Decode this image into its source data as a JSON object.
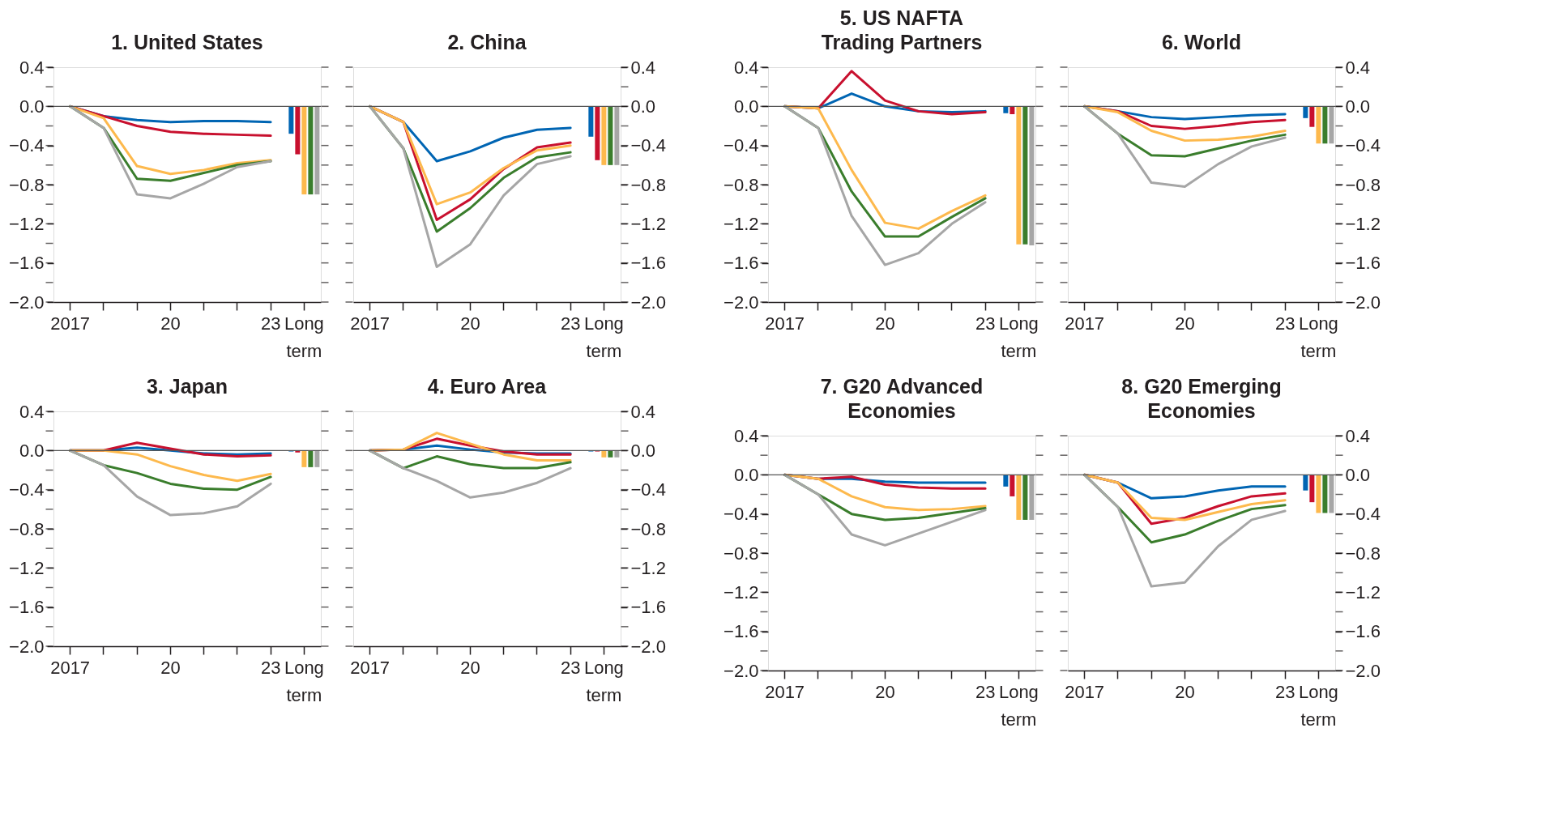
{
  "chart_data": [
    {
      "type": "line",
      "title": "1. United States",
      "categories": [
        "2017",
        null,
        null,
        "20",
        null,
        null,
        "23",
        "Long term"
      ],
      "ylim": [
        -2.0,
        0.4
      ],
      "yticks": [
        {
          "value": 0.4,
          "label": "0.4"
        },
        {
          "value": 0.2,
          "label": null
        },
        {
          "value": 0,
          "label": "0.0"
        },
        {
          "value": -0.2,
          "label": null
        },
        {
          "value": -0.4,
          "label": "−0.4"
        },
        {
          "value": -0.6,
          "label": null
        },
        {
          "value": -0.8,
          "label": "−0.8"
        },
        {
          "value": -1.0,
          "label": null
        },
        {
          "value": -1.2,
          "label": "−1.2"
        },
        {
          "value": -1.4,
          "label": null
        },
        {
          "value": -1.6,
          "label": "−1.6"
        },
        {
          "value": -1.8,
          "label": null
        },
        {
          "value": -2.0,
          "label": "−2.0"
        }
      ],
      "ref_lines": [
        {
          "axis": "y",
          "value": 0
        }
      ],
      "series": [
        {
          "color": "#0065b3",
          "values": [
            0,
            -0.1,
            -0.14,
            -0.16,
            -0.15,
            -0.15,
            -0.16,
            null
          ]
        },
        {
          "color": "#c8102e",
          "values": [
            0,
            -0.1,
            -0.2,
            -0.26,
            -0.28,
            -0.29,
            -0.3,
            null
          ]
        },
        {
          "color": "#fdb94d",
          "values": [
            0,
            -0.12,
            -0.61,
            -0.69,
            -0.65,
            -0.58,
            -0.55,
            null
          ]
        },
        {
          "color": "#3a7d2c",
          "values": [
            0,
            -0.22,
            -0.74,
            -0.76,
            -0.68,
            -0.6,
            -0.56,
            null
          ]
        },
        {
          "color": "#a6a6a6",
          "values": [
            0,
            -0.22,
            -0.9,
            -0.94,
            -0.79,
            -0.62,
            -0.56,
            null
          ]
        },
        {
          "type": "bar",
          "color": "#0065b3",
          "values": [
            null,
            null,
            null,
            null,
            null,
            null,
            null,
            -0.28
          ]
        },
        {
          "type": "bar",
          "color": "#c8102e",
          "values": [
            null,
            null,
            null,
            null,
            null,
            null,
            null,
            -0.49
          ]
        },
        {
          "type": "bar",
          "color": "#fdb94d",
          "values": [
            null,
            null,
            null,
            null,
            null,
            null,
            null,
            -0.9
          ]
        },
        {
          "type": "bar",
          "color": "#3a7d2c",
          "values": [
            null,
            null,
            null,
            null,
            null,
            null,
            null,
            -0.9
          ]
        },
        {
          "type": "bar",
          "color": "#a6a6a6",
          "values": [
            null,
            null,
            null,
            null,
            null,
            null,
            null,
            -0.9
          ]
        }
      ]
    },
    {
      "type": "line",
      "title": "2. China",
      "categories": [
        "2017",
        null,
        null,
        "20",
        null,
        null,
        "23",
        "Long term"
      ],
      "ylim": [
        -2.0,
        0.4
      ],
      "yticks": [
        {
          "value": 0.4,
          "label": "0.4"
        },
        {
          "value": 0.2,
          "label": null
        },
        {
          "value": 0,
          "label": "0.0"
        },
        {
          "value": -0.2,
          "label": null
        },
        {
          "value": -0.4,
          "label": "−0.4"
        },
        {
          "value": -0.6,
          "label": null
        },
        {
          "value": -0.8,
          "label": "−0.8"
        },
        {
          "value": -1.0,
          "label": null
        },
        {
          "value": -1.2,
          "label": "−1.2"
        },
        {
          "value": -1.4,
          "label": null
        },
        {
          "value": -1.6,
          "label": "−1.6"
        },
        {
          "value": -1.8,
          "label": null
        },
        {
          "value": -2.0,
          "label": "−2.0"
        }
      ],
      "ref_lines": [
        {
          "axis": "y",
          "value": 0
        }
      ],
      "series": [
        {
          "color": "#0065b3",
          "values": [
            0,
            -0.16,
            -0.56,
            -0.46,
            -0.32,
            -0.24,
            -0.22,
            null
          ]
        },
        {
          "color": "#c8102e",
          "values": [
            0,
            -0.16,
            -1.16,
            -0.95,
            -0.64,
            -0.42,
            -0.37,
            null
          ]
        },
        {
          "color": "#fdb94d",
          "values": [
            0,
            -0.16,
            -1.0,
            -0.88,
            -0.63,
            -0.45,
            -0.4,
            null
          ]
        },
        {
          "color": "#3a7d2c",
          "values": [
            0,
            -0.43,
            -1.28,
            -1.04,
            -0.73,
            -0.52,
            -0.47,
            null
          ]
        },
        {
          "color": "#a6a6a6",
          "values": [
            0,
            -0.43,
            -1.64,
            -1.41,
            -0.91,
            -0.59,
            -0.51,
            null
          ]
        },
        {
          "type": "bar",
          "color": "#0065b3",
          "values": [
            null,
            null,
            null,
            null,
            null,
            null,
            null,
            -0.31
          ]
        },
        {
          "type": "bar",
          "color": "#c8102e",
          "values": [
            null,
            null,
            null,
            null,
            null,
            null,
            null,
            -0.55
          ]
        },
        {
          "type": "bar",
          "color": "#fdb94d",
          "values": [
            null,
            null,
            null,
            null,
            null,
            null,
            null,
            -0.6
          ]
        },
        {
          "type": "bar",
          "color": "#3a7d2c",
          "values": [
            null,
            null,
            null,
            null,
            null,
            null,
            null,
            -0.6
          ]
        },
        {
          "type": "bar",
          "color": "#a6a6a6",
          "values": [
            null,
            null,
            null,
            null,
            null,
            null,
            null,
            -0.6
          ]
        }
      ]
    },
    {
      "type": "line",
      "title": "3. Japan",
      "categories": [
        "2017",
        null,
        null,
        "20",
        null,
        null,
        "23",
        "Long term"
      ],
      "ylim": [
        -2.0,
        0.4
      ],
      "yticks": [
        {
          "value": 0.4,
          "label": "0.4"
        },
        {
          "value": 0.2,
          "label": null
        },
        {
          "value": 0,
          "label": "0.0"
        },
        {
          "value": -0.2,
          "label": null
        },
        {
          "value": -0.4,
          "label": "−0.4"
        },
        {
          "value": -0.6,
          "label": null
        },
        {
          "value": -0.8,
          "label": "−0.8"
        },
        {
          "value": -1.0,
          "label": null
        },
        {
          "value": -1.2,
          "label": "−1.2"
        },
        {
          "value": -1.4,
          "label": null
        },
        {
          "value": -1.6,
          "label": "−1.6"
        },
        {
          "value": -1.8,
          "label": null
        },
        {
          "value": -2.0,
          "label": "−2.0"
        }
      ],
      "ref_lines": [
        {
          "axis": "y",
          "value": 0
        }
      ],
      "series": [
        {
          "color": "#0065b3",
          "values": [
            0,
            0,
            0.03,
            0,
            -0.03,
            -0.04,
            -0.03,
            null
          ]
        },
        {
          "color": "#c8102e",
          "values": [
            0,
            0,
            0.08,
            0.02,
            -0.04,
            -0.06,
            -0.05,
            null
          ]
        },
        {
          "color": "#fdb94d",
          "values": [
            0,
            0,
            -0.04,
            -0.16,
            -0.25,
            -0.31,
            -0.24,
            null
          ]
        },
        {
          "color": "#3a7d2c",
          "values": [
            0,
            -0.15,
            -0.23,
            -0.34,
            -0.39,
            -0.4,
            -0.27,
            null
          ]
        },
        {
          "color": "#a6a6a6",
          "values": [
            0,
            -0.15,
            -0.47,
            -0.66,
            -0.64,
            -0.57,
            -0.34,
            null
          ]
        },
        {
          "type": "bar",
          "color": "#0065b3",
          "values": [
            null,
            null,
            null,
            null,
            null,
            null,
            null,
            -0.01
          ]
        },
        {
          "type": "bar",
          "color": "#c8102e",
          "values": [
            null,
            null,
            null,
            null,
            null,
            null,
            null,
            -0.02
          ]
        },
        {
          "type": "bar",
          "color": "#fdb94d",
          "values": [
            null,
            null,
            null,
            null,
            null,
            null,
            null,
            -0.17
          ]
        },
        {
          "type": "bar",
          "color": "#3a7d2c",
          "values": [
            null,
            null,
            null,
            null,
            null,
            null,
            null,
            -0.17
          ]
        },
        {
          "type": "bar",
          "color": "#a6a6a6",
          "values": [
            null,
            null,
            null,
            null,
            null,
            null,
            null,
            -0.17
          ]
        }
      ]
    },
    {
      "type": "line",
      "title": "4. Euro Area",
      "categories": [
        "2017",
        null,
        null,
        "20",
        null,
        null,
        "23",
        "Long term"
      ],
      "ylim": [
        -2.0,
        0.4
      ],
      "yticks": [
        {
          "value": 0.4,
          "label": "0.4"
        },
        {
          "value": 0.2,
          "label": null
        },
        {
          "value": 0,
          "label": "0.0"
        },
        {
          "value": -0.2,
          "label": null
        },
        {
          "value": -0.4,
          "label": "−0.4"
        },
        {
          "value": -0.6,
          "label": null
        },
        {
          "value": -0.8,
          "label": "−0.8"
        },
        {
          "value": -1.0,
          "label": null
        },
        {
          "value": -1.2,
          "label": "−1.2"
        },
        {
          "value": -1.4,
          "label": null
        },
        {
          "value": -1.6,
          "label": "−1.6"
        },
        {
          "value": -1.8,
          "label": null
        },
        {
          "value": -2.0,
          "label": "−2.0"
        }
      ],
      "ref_lines": [
        {
          "axis": "y",
          "value": 0
        }
      ],
      "series": [
        {
          "color": "#0065b3",
          "values": [
            0,
            0.01,
            0.05,
            0.01,
            -0.02,
            -0.03,
            -0.03,
            null
          ]
        },
        {
          "color": "#c8102e",
          "values": [
            0,
            0.01,
            0.12,
            0.05,
            -0.01,
            -0.04,
            -0.04,
            null
          ]
        },
        {
          "color": "#fdb94d",
          "values": [
            0,
            0.01,
            0.18,
            0.07,
            -0.04,
            -0.1,
            -0.1,
            null
          ]
        },
        {
          "color": "#3a7d2c",
          "values": [
            0,
            -0.18,
            -0.06,
            -0.14,
            -0.18,
            -0.18,
            -0.12,
            null
          ]
        },
        {
          "color": "#a6a6a6",
          "values": [
            0,
            -0.18,
            -0.31,
            -0.48,
            -0.43,
            -0.33,
            -0.18,
            null
          ]
        },
        {
          "type": "bar",
          "color": "#0065b3",
          "values": [
            null,
            null,
            null,
            null,
            null,
            null,
            null,
            -0.01
          ]
        },
        {
          "type": "bar",
          "color": "#c8102e",
          "values": [
            null,
            null,
            null,
            null,
            null,
            null,
            null,
            -0.01
          ]
        },
        {
          "type": "bar",
          "color": "#fdb94d",
          "values": [
            null,
            null,
            null,
            null,
            null,
            null,
            null,
            -0.07
          ]
        },
        {
          "type": "bar",
          "color": "#3a7d2c",
          "values": [
            null,
            null,
            null,
            null,
            null,
            null,
            null,
            -0.07
          ]
        },
        {
          "type": "bar",
          "color": "#a6a6a6",
          "values": [
            null,
            null,
            null,
            null,
            null,
            null,
            null,
            -0.07
          ]
        }
      ]
    },
    {
      "type": "line",
      "title": "5. US NAFTA\nTrading Partners",
      "categories": [
        "2017",
        null,
        null,
        "20",
        null,
        null,
        "23",
        "Long term"
      ],
      "ylim": [
        -2.0,
        0.4
      ],
      "yticks": [
        {
          "value": 0.4,
          "label": "0.4"
        },
        {
          "value": 0.2,
          "label": null
        },
        {
          "value": 0,
          "label": "0.0"
        },
        {
          "value": -0.2,
          "label": null
        },
        {
          "value": -0.4,
          "label": "−0.4"
        },
        {
          "value": -0.6,
          "label": null
        },
        {
          "value": -0.8,
          "label": "−0.8"
        },
        {
          "value": -1.0,
          "label": null
        },
        {
          "value": -1.2,
          "label": "−1.2"
        },
        {
          "value": -1.4,
          "label": null
        },
        {
          "value": -1.6,
          "label": "−1.6"
        },
        {
          "value": -1.8,
          "label": null
        },
        {
          "value": -2.0,
          "label": "−2.0"
        }
      ],
      "ref_lines": [
        {
          "axis": "y",
          "value": 0
        }
      ],
      "series": [
        {
          "color": "#0065b3",
          "values": [
            0,
            -0.02,
            0.13,
            0,
            -0.05,
            -0.06,
            -0.05,
            null
          ]
        },
        {
          "color": "#c8102e",
          "values": [
            0,
            -0.02,
            0.36,
            0.06,
            -0.05,
            -0.08,
            -0.06,
            null
          ]
        },
        {
          "color": "#fdb94d",
          "values": [
            0,
            -0.02,
            -0.65,
            -1.19,
            -1.25,
            -1.07,
            -0.91,
            null
          ]
        },
        {
          "color": "#3a7d2c",
          "values": [
            0,
            -0.22,
            -0.87,
            -1.33,
            -1.33,
            -1.13,
            -0.94,
            null
          ]
        },
        {
          "color": "#a6a6a6",
          "values": [
            0,
            -0.22,
            -1.12,
            -1.62,
            -1.5,
            -1.2,
            -0.98,
            null
          ]
        },
        {
          "type": "bar",
          "color": "#0065b3",
          "values": [
            null,
            null,
            null,
            null,
            null,
            null,
            null,
            -0.07
          ]
        },
        {
          "type": "bar",
          "color": "#c8102e",
          "values": [
            null,
            null,
            null,
            null,
            null,
            null,
            null,
            -0.08
          ]
        },
        {
          "type": "bar",
          "color": "#fdb94d",
          "values": [
            null,
            null,
            null,
            null,
            null,
            null,
            null,
            -1.41
          ]
        },
        {
          "type": "bar",
          "color": "#3a7d2c",
          "values": [
            null,
            null,
            null,
            null,
            null,
            null,
            null,
            -1.41
          ]
        },
        {
          "type": "bar",
          "color": "#a6a6a6",
          "values": [
            null,
            null,
            null,
            null,
            null,
            null,
            null,
            -1.42
          ]
        }
      ]
    },
    {
      "type": "line",
      "title": "6. World",
      "categories": [
        "2017",
        null,
        null,
        "20",
        null,
        null,
        "23",
        "Long term"
      ],
      "ylim": [
        -2.0,
        0.4
      ],
      "yticks": [
        {
          "value": 0.4,
          "label": "0.4"
        },
        {
          "value": 0.2,
          "label": null
        },
        {
          "value": 0,
          "label": "0.0"
        },
        {
          "value": -0.2,
          "label": null
        },
        {
          "value": -0.4,
          "label": "−0.4"
        },
        {
          "value": -0.6,
          "label": null
        },
        {
          "value": -0.8,
          "label": "−0.8"
        },
        {
          "value": -1.0,
          "label": null
        },
        {
          "value": -1.2,
          "label": "−1.2"
        },
        {
          "value": -1.4,
          "label": null
        },
        {
          "value": -1.6,
          "label": "−1.6"
        },
        {
          "value": -1.8,
          "label": null
        },
        {
          "value": -2.0,
          "label": "−2.0"
        }
      ],
      "ref_lines": [
        {
          "axis": "y",
          "value": 0
        }
      ],
      "series": [
        {
          "color": "#0065b3",
          "values": [
            0,
            -0.05,
            -0.11,
            -0.13,
            -0.11,
            -0.09,
            -0.08,
            null
          ]
        },
        {
          "color": "#c8102e",
          "values": [
            0,
            -0.05,
            -0.2,
            -0.23,
            -0.2,
            -0.16,
            -0.14,
            null
          ]
        },
        {
          "color": "#fdb94d",
          "values": [
            0,
            -0.06,
            -0.25,
            -0.35,
            -0.34,
            -0.31,
            -0.25,
            null
          ]
        },
        {
          "color": "#3a7d2c",
          "values": [
            0,
            -0.28,
            -0.5,
            -0.51,
            -0.43,
            -0.35,
            -0.29,
            null
          ]
        },
        {
          "color": "#a6a6a6",
          "values": [
            0,
            -0.28,
            -0.78,
            -0.82,
            -0.59,
            -0.41,
            -0.32,
            null
          ]
        },
        {
          "type": "bar",
          "color": "#0065b3",
          "values": [
            null,
            null,
            null,
            null,
            null,
            null,
            null,
            -0.12
          ]
        },
        {
          "type": "bar",
          "color": "#c8102e",
          "values": [
            null,
            null,
            null,
            null,
            null,
            null,
            null,
            -0.21
          ]
        },
        {
          "type": "bar",
          "color": "#fdb94d",
          "values": [
            null,
            null,
            null,
            null,
            null,
            null,
            null,
            -0.38
          ]
        },
        {
          "type": "bar",
          "color": "#3a7d2c",
          "values": [
            null,
            null,
            null,
            null,
            null,
            null,
            null,
            -0.38
          ]
        },
        {
          "type": "bar",
          "color": "#a6a6a6",
          "values": [
            null,
            null,
            null,
            null,
            null,
            null,
            null,
            -0.38
          ]
        }
      ]
    },
    {
      "type": "line",
      "title": "7. G20 Advanced\nEconomies",
      "categories": [
        "2017",
        null,
        null,
        "20",
        null,
        null,
        "23",
        "Long term"
      ],
      "ylim": [
        -2.0,
        0.4
      ],
      "yticks": [
        {
          "value": 0.4,
          "label": "0.4"
        },
        {
          "value": 0.2,
          "label": null
        },
        {
          "value": 0,
          "label": "0.0"
        },
        {
          "value": -0.2,
          "label": null
        },
        {
          "value": -0.4,
          "label": "−0.4"
        },
        {
          "value": -0.6,
          "label": null
        },
        {
          "value": -0.8,
          "label": "−0.8"
        },
        {
          "value": -1.0,
          "label": null
        },
        {
          "value": -1.2,
          "label": "−1.2"
        },
        {
          "value": -1.4,
          "label": null
        },
        {
          "value": -1.6,
          "label": "−1.6"
        },
        {
          "value": -1.8,
          "label": null
        },
        {
          "value": -2.0,
          "label": "−2.0"
        }
      ],
      "ref_lines": [
        {
          "axis": "y",
          "value": 0
        }
      ],
      "series": [
        {
          "color": "#0065b3",
          "values": [
            0,
            -0.04,
            -0.04,
            -0.07,
            -0.08,
            -0.08,
            -0.08,
            null
          ]
        },
        {
          "color": "#c8102e",
          "values": [
            0,
            -0.04,
            -0.02,
            -0.1,
            -0.13,
            -0.14,
            -0.14,
            null
          ]
        },
        {
          "color": "#fdb94d",
          "values": [
            0,
            -0.04,
            -0.22,
            -0.33,
            -0.36,
            -0.35,
            -0.32,
            null
          ]
        },
        {
          "color": "#3a7d2c",
          "values": [
            0,
            -0.2,
            -0.4,
            -0.46,
            -0.44,
            -0.39,
            -0.34,
            null
          ]
        },
        {
          "color": "#a6a6a6",
          "values": [
            0,
            -0.2,
            -0.61,
            -0.72,
            -0.6,
            -0.48,
            -0.36,
            null
          ]
        },
        {
          "type": "bar",
          "color": "#0065b3",
          "values": [
            null,
            null,
            null,
            null,
            null,
            null,
            null,
            -0.12
          ]
        },
        {
          "type": "bar",
          "color": "#c8102e",
          "values": [
            null,
            null,
            null,
            null,
            null,
            null,
            null,
            -0.22
          ]
        },
        {
          "type": "bar",
          "color": "#fdb94d",
          "values": [
            null,
            null,
            null,
            null,
            null,
            null,
            null,
            -0.46
          ]
        },
        {
          "type": "bar",
          "color": "#3a7d2c",
          "values": [
            null,
            null,
            null,
            null,
            null,
            null,
            null,
            -0.46
          ]
        },
        {
          "type": "bar",
          "color": "#a6a6a6",
          "values": [
            null,
            null,
            null,
            null,
            null,
            null,
            null,
            -0.46
          ]
        }
      ]
    },
    {
      "type": "line",
      "title": "8. G20 Emerging\nEconomies",
      "categories": [
        "2017",
        null,
        null,
        "20",
        null,
        null,
        "23",
        "Long term"
      ],
      "ylim": [
        -2.0,
        0.4
      ],
      "yticks": [
        {
          "value": 0.4,
          "label": "0.4"
        },
        {
          "value": 0.2,
          "label": null
        },
        {
          "value": 0,
          "label": "0.0"
        },
        {
          "value": -0.2,
          "label": null
        },
        {
          "value": -0.4,
          "label": "−0.4"
        },
        {
          "value": -0.6,
          "label": null
        },
        {
          "value": -0.8,
          "label": "−0.8"
        },
        {
          "value": -1.0,
          "label": null
        },
        {
          "value": -1.2,
          "label": "−1.2"
        },
        {
          "value": -1.4,
          "label": null
        },
        {
          "value": -1.6,
          "label": "−1.6"
        },
        {
          "value": -1.8,
          "label": null
        },
        {
          "value": -2.0,
          "label": "−2.0"
        }
      ],
      "ref_lines": [
        {
          "axis": "y",
          "value": 0
        }
      ],
      "series": [
        {
          "color": "#0065b3",
          "values": [
            0,
            -0.08,
            -0.24,
            -0.22,
            -0.16,
            -0.12,
            -0.12,
            null
          ]
        },
        {
          "color": "#c8102e",
          "values": [
            0,
            -0.08,
            -0.5,
            -0.44,
            -0.32,
            -0.22,
            -0.19,
            null
          ]
        },
        {
          "color": "#fdb94d",
          "values": [
            0,
            -0.08,
            -0.44,
            -0.46,
            -0.38,
            -0.3,
            -0.26,
            null
          ]
        },
        {
          "color": "#3a7d2c",
          "values": [
            0,
            -0.33,
            -0.69,
            -0.61,
            -0.47,
            -0.35,
            -0.31,
            null
          ]
        },
        {
          "color": "#a6a6a6",
          "values": [
            0,
            -0.33,
            -1.14,
            -1.1,
            -0.73,
            -0.46,
            -0.37,
            null
          ]
        },
        {
          "type": "bar",
          "color": "#0065b3",
          "values": [
            null,
            null,
            null,
            null,
            null,
            null,
            null,
            -0.16
          ]
        },
        {
          "type": "bar",
          "color": "#c8102e",
          "values": [
            null,
            null,
            null,
            null,
            null,
            null,
            null,
            -0.28
          ]
        },
        {
          "type": "bar",
          "color": "#fdb94d",
          "values": [
            null,
            null,
            null,
            null,
            null,
            null,
            null,
            -0.39
          ]
        },
        {
          "type": "bar",
          "color": "#3a7d2c",
          "values": [
            null,
            null,
            null,
            null,
            null,
            null,
            null,
            -0.39
          ]
        },
        {
          "type": "bar",
          "color": "#a6a6a6",
          "values": [
            null,
            null,
            null,
            null,
            null,
            null,
            null,
            -0.39
          ]
        }
      ]
    }
  ]
}
